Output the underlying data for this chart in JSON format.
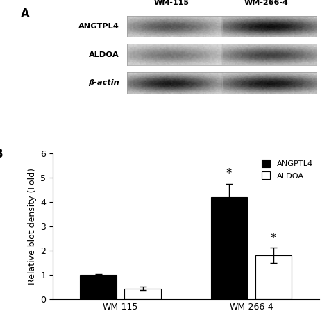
{
  "panel_A_label": "A",
  "panel_B_label": "B",
  "blot_labels": [
    "ANGTPL4",
    "ALDOA",
    "β-actin"
  ],
  "col_labels": [
    "WM-115",
    "WM-266-4"
  ],
  "groups": [
    "WM-115",
    "WM-266-4"
  ],
  "angptl4_values": [
    1.0,
    4.2
  ],
  "aldoa_values": [
    0.45,
    1.8
  ],
  "angptl4_errors": [
    0.05,
    0.55
  ],
  "aldoa_errors": [
    0.07,
    0.32
  ],
  "angptl4_color": "#000000",
  "aldoa_color": "#ffffff",
  "ylabel": "Relative blot density (Fold)",
  "ylim": [
    0,
    6
  ],
  "yticks": [
    0,
    1,
    2,
    3,
    4,
    5,
    6
  ],
  "legend_labels": [
    "ANGPTL4",
    "ALDOA"
  ],
  "bar_width": 0.28,
  "significance_wm266_angptl4": "*",
  "significance_wm266_aldoa": "*",
  "background_color": "#ffffff",
  "font_size_labels": 9,
  "font_size_ticks": 9,
  "font_size_panel": 12,
  "blot_band_params": [
    {
      "wm115_intensity": 0.55,
      "wm266_intensity": 0.82
    },
    {
      "wm115_intensity": 0.42,
      "wm266_intensity": 0.62
    },
    {
      "wm115_intensity": 0.78,
      "wm266_intensity": 0.8
    }
  ]
}
